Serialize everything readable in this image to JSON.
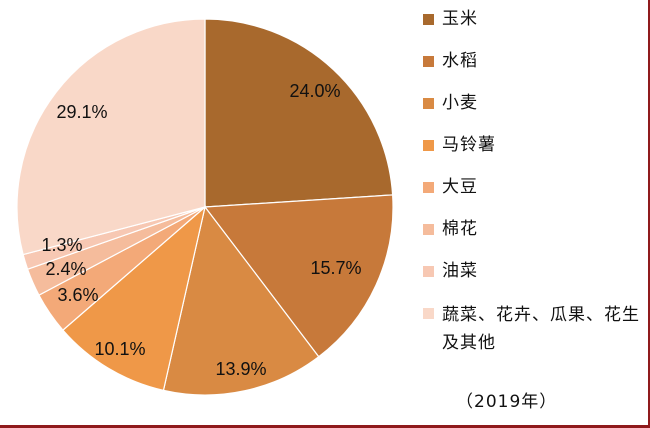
{
  "chart_data": {
    "type": "pie",
    "categories": [
      "玉米",
      "水稻",
      "小麦",
      "马铃薯",
      "大豆",
      "棉花",
      "油菜",
      "蔬菜、花卉、瓜果、花生及其他"
    ],
    "values": [
      24.0,
      15.7,
      13.9,
      10.1,
      3.6,
      2.4,
      1.3,
      29.1
    ],
    "data_labels": [
      "24.0%",
      "15.7%",
      "13.9%",
      "10.1%",
      "3.6%",
      "2.4%",
      "1.3%",
      "29.1%"
    ],
    "colors": [
      "#a8692d",
      "#c7793a",
      "#d98a43",
      "#ef9848",
      "#f3a978",
      "#f5bc9c",
      "#f7c8b3",
      "#f9d8c8"
    ],
    "legend_position": "right",
    "note": "（2019年）"
  }
}
